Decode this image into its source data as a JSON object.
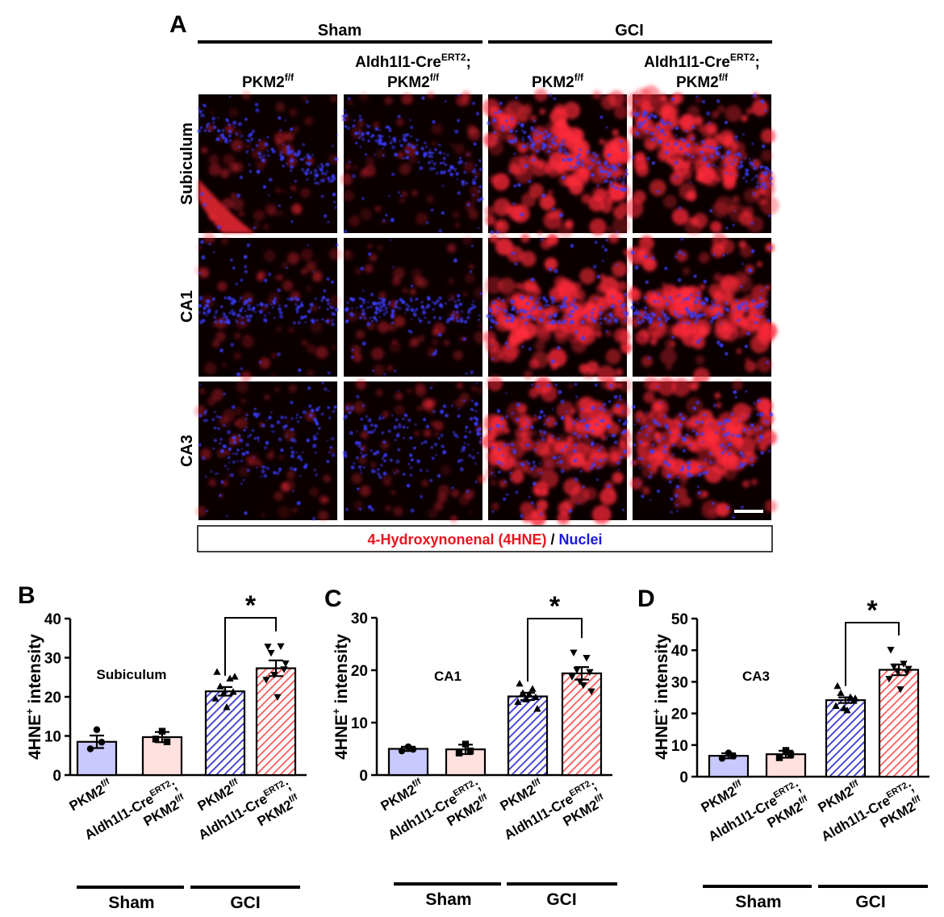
{
  "panel_A": {
    "letter": "A",
    "sham_label": "Sham",
    "gci_label": "GCI",
    "col_labels": [
      {
        "line1": "",
        "line2": "PKM2",
        "line2_sup": "f/f"
      },
      {
        "line1": "Aldh1l1-Cre",
        "line1_sup": "ERT2",
        "line1_suffix": ";",
        "line2": "PKM2",
        "line2_sup": "f/f"
      },
      {
        "line1": "",
        "line2": "PKM2",
        "line2_sup": "f/f"
      },
      {
        "line1": "Aldh1l1-Cre",
        "line1_sup": "ERT2",
        "line1_suffix": ";",
        "line2": "PKM2",
        "line2_sup": "f/f"
      }
    ],
    "row_labels": [
      "Subiculum",
      "CA1",
      "CA3"
    ],
    "legend_red": "4-Hydroxynonenal (4HNE)",
    "legend_sep": " / ",
    "legend_blue": "Nuclei",
    "colors": {
      "stain_red": "#ff2a3a",
      "stain_blue": "#3a3cff",
      "background": "#0a0000"
    }
  },
  "chart_data": [
    {
      "panel": "B",
      "type": "bar",
      "annotation": "Subiculum",
      "ylabel": "4HNE",
      "ylabel_sup": "+",
      "ylabel_rest": " intensity",
      "ylim": [
        0,
        40
      ],
      "yticks": [
        0,
        10,
        20,
        30,
        40
      ],
      "categories": [
        {
          "l1": "PKM2",
          "l1_sup": "f/f"
        },
        {
          "l1": "Aldh1l1-Cre",
          "l1_sup": "ERT2",
          "l1_suffix": ";",
          "l2": "PKM2",
          "l2_sup": "f/f"
        },
        {
          "l1": "PKM2",
          "l1_sup": "f/f"
        },
        {
          "l1": "Aldh1l1-Cre",
          "l1_sup": "ERT2",
          "l1_suffix": ";",
          "l2": "PKM2",
          "l2_sup": "f/f"
        }
      ],
      "values": [
        8.5,
        9.7,
        21.4,
        27.3
      ],
      "sem": [
        1.6,
        1.3,
        1.1,
        2.0
      ],
      "points": [
        [
          11.6,
          6.7,
          8.4
        ],
        [
          11.2,
          9.2,
          8.5
        ],
        [
          26.3,
          24.6,
          22.6,
          21.2,
          19.5,
          17.3,
          25.1,
          20.8
        ],
        [
          32.9,
          33.0,
          31.3,
          27.1,
          24.4,
          20.0,
          28.6,
          25.7
        ]
      ],
      "markers": [
        "circle",
        "square",
        "triangle",
        "triangle-down"
      ],
      "significance": {
        "between": [
          2,
          3
        ],
        "label": "*"
      },
      "group_labels": [
        "Sham",
        "GCI"
      ]
    },
    {
      "panel": "C",
      "type": "bar",
      "annotation": "CA1",
      "ylabel": "4HNE",
      "ylabel_sup": "+",
      "ylabel_rest": " intensity",
      "ylim": [
        0,
        30
      ],
      "yticks": [
        0,
        10,
        20,
        30
      ],
      "categories": [
        {
          "l1": "PKM2",
          "l1_sup": "f/f"
        },
        {
          "l1": "Aldh1l1-Cre",
          "l1_sup": "ERT2",
          "l1_suffix": ";",
          "l2": "PKM2",
          "l2_sup": "f/f"
        },
        {
          "l1": "PKM2",
          "l1_sup": "f/f"
        },
        {
          "l1": "Aldh1l1-Cre",
          "l1_sup": "ERT2",
          "l1_suffix": ";",
          "l2": "PKM2",
          "l2_sup": "f/f"
        }
      ],
      "values": [
        5.0,
        4.9,
        15.0,
        19.4
      ],
      "sem": [
        0.4,
        0.9,
        0.7,
        1.2
      ],
      "points": [
        [
          5.4,
          4.6,
          4.9
        ],
        [
          5.9,
          4.2,
          4.6
        ],
        [
          17.4,
          16.4,
          15.6,
          14.8,
          13.9,
          15.3,
          12.6,
          14.4
        ],
        [
          23.4,
          22.4,
          20.1,
          19.7,
          18.8,
          17.2,
          16.0,
          17.9
        ]
      ],
      "markers": [
        "circle",
        "square",
        "triangle",
        "triangle-down"
      ],
      "significance": {
        "between": [
          2,
          3
        ],
        "label": "*"
      },
      "group_labels": [
        "Sham",
        "GCI"
      ]
    },
    {
      "panel": "D",
      "type": "bar",
      "annotation": "CA3",
      "ylabel": "4HNE",
      "ylabel_sup": "+",
      "ylabel_rest": " intensity",
      "ylim": [
        0,
        50
      ],
      "yticks": [
        0,
        10,
        20,
        30,
        40,
        50
      ],
      "categories": [
        {
          "l1": "PKM2",
          "l1_sup": "f/f"
        },
        {
          "l1": "Aldh1l1-Cre",
          "l1_sup": "ERT2",
          "l1_suffix": ";",
          "l2": "PKM2",
          "l2_sup": "f/f"
        },
        {
          "l1": "PKM2",
          "l1_sup": "f/f"
        },
        {
          "l1": "Aldh1l1-Cre",
          "l1_sup": "ERT2",
          "l1_suffix": ";",
          "l2": "PKM2",
          "l2_sup": "f/f"
        }
      ],
      "values": [
        6.6,
        7.1,
        24.2,
        33.8
      ],
      "sem": [
        0.8,
        1.1,
        0.9,
        1.7
      ],
      "points": [
        [
          7.5,
          5.8,
          6.5
        ],
        [
          8.3,
          6.0,
          7.0
        ],
        [
          28.6,
          25.1,
          26.4,
          23.9,
          22.3,
          20.9,
          24.7,
          21.6
        ],
        [
          40.2,
          35.8,
          34.9,
          33.1,
          31.0,
          27.7,
          34.2,
          33.5
        ]
      ],
      "markers": [
        "circle",
        "square",
        "triangle",
        "triangle-down"
      ],
      "significance": {
        "between": [
          2,
          3
        ],
        "label": "*"
      },
      "group_labels": [
        "Sham",
        "GCI"
      ]
    }
  ],
  "bar_colors": [
    "#c9c9ff",
    "#ffe1df",
    "#3b37d6",
    "#ff5a5a"
  ],
  "bar_hatched": [
    false,
    false,
    true,
    true
  ]
}
